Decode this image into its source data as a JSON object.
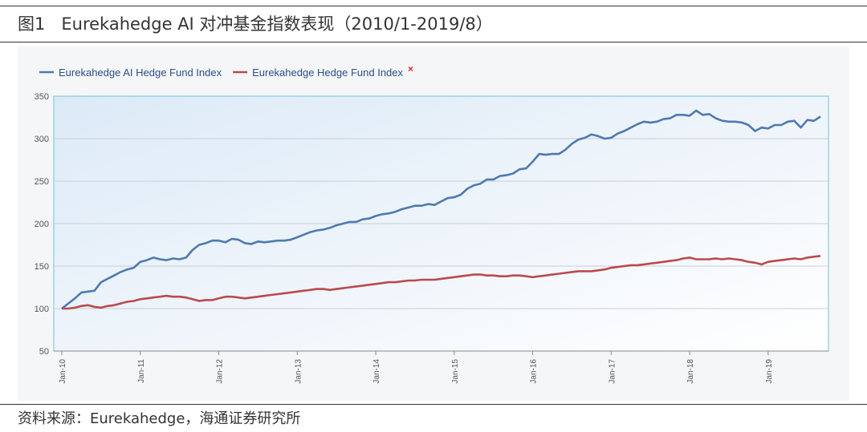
{
  "figure": {
    "number": "图1",
    "title": "Eurekahedge AI 对冲基金指数表现（2010/1-2019/8）",
    "source": "资料来源：Eurekahedge，海通证券研究所"
  },
  "chart_data": {
    "type": "line",
    "title": "",
    "xlabel": "",
    "ylabel": "",
    "ylim": [
      50,
      350
    ],
    "yticks": [
      50,
      100,
      150,
      200,
      250,
      300,
      350
    ],
    "xticks": [
      "Jan-10",
      "Jan-11",
      "Jan-12",
      "Jan-13",
      "Jan-14",
      "Jan-15",
      "Jan-16",
      "Jan-17",
      "Jan-18",
      "Jan-19"
    ],
    "x_start": "2010-01",
    "x_end": "2019-08",
    "grid": true,
    "legend_position": "top-left",
    "legend_close_mark": "×",
    "series": [
      {
        "name": "Eurekahedge AI Hedge Fund Index",
        "color": "#4f7ab0",
        "values": [
          100,
          106,
          112,
          119,
          120,
          121,
          131,
          135,
          139,
          143,
          146,
          148,
          155,
          157,
          160,
          158,
          157,
          159,
          158,
          160,
          169,
          175,
          177,
          180,
          180,
          178,
          182,
          181,
          177,
          176,
          179,
          178,
          179,
          180,
          180,
          181,
          184,
          187,
          190,
          192,
          193,
          195,
          198,
          200,
          202,
          202,
          205,
          206,
          209,
          211,
          212,
          214,
          217,
          219,
          221,
          221,
          223,
          222,
          226,
          230,
          231,
          234,
          241,
          245,
          247,
          252,
          252,
          256,
          257,
          259,
          264,
          265,
          273,
          282,
          281,
          282,
          282,
          287,
          294,
          299,
          301,
          305,
          303,
          300,
          301,
          306,
          309,
          313,
          317,
          320,
          319,
          320,
          323,
          324,
          328,
          328,
          327,
          333,
          328,
          329,
          324,
          321,
          320,
          320,
          319,
          316,
          309,
          313,
          312,
          316,
          316,
          320,
          321,
          313,
          322,
          321,
          326
        ]
      },
      {
        "name": "Eurekahedge Hedge Fund Index",
        "color": "#b94a4d",
        "values": [
          100,
          100,
          101,
          103,
          104,
          102,
          101,
          103,
          104,
          106,
          108,
          109,
          111,
          112,
          113,
          114,
          115,
          114,
          114,
          113,
          111,
          109,
          110,
          110,
          112,
          114,
          114,
          113,
          112,
          113,
          114,
          115,
          116,
          117,
          118,
          119,
          120,
          121,
          122,
          123,
          123,
          122,
          123,
          124,
          125,
          126,
          127,
          128,
          129,
          130,
          131,
          131,
          132,
          133,
          133,
          134,
          134,
          134,
          135,
          136,
          137,
          138,
          139,
          140,
          140,
          139,
          139,
          138,
          138,
          139,
          139,
          138,
          137,
          138,
          139,
          140,
          141,
          142,
          143,
          144,
          144,
          144,
          145,
          146,
          148,
          149,
          150,
          151,
          151,
          152,
          153,
          154,
          155,
          156,
          157,
          159,
          160,
          158,
          158,
          158,
          159,
          158,
          159,
          158,
          157,
          155,
          154,
          152,
          155,
          156,
          157,
          158,
          159,
          158,
          160,
          161,
          162
        ]
      }
    ]
  }
}
